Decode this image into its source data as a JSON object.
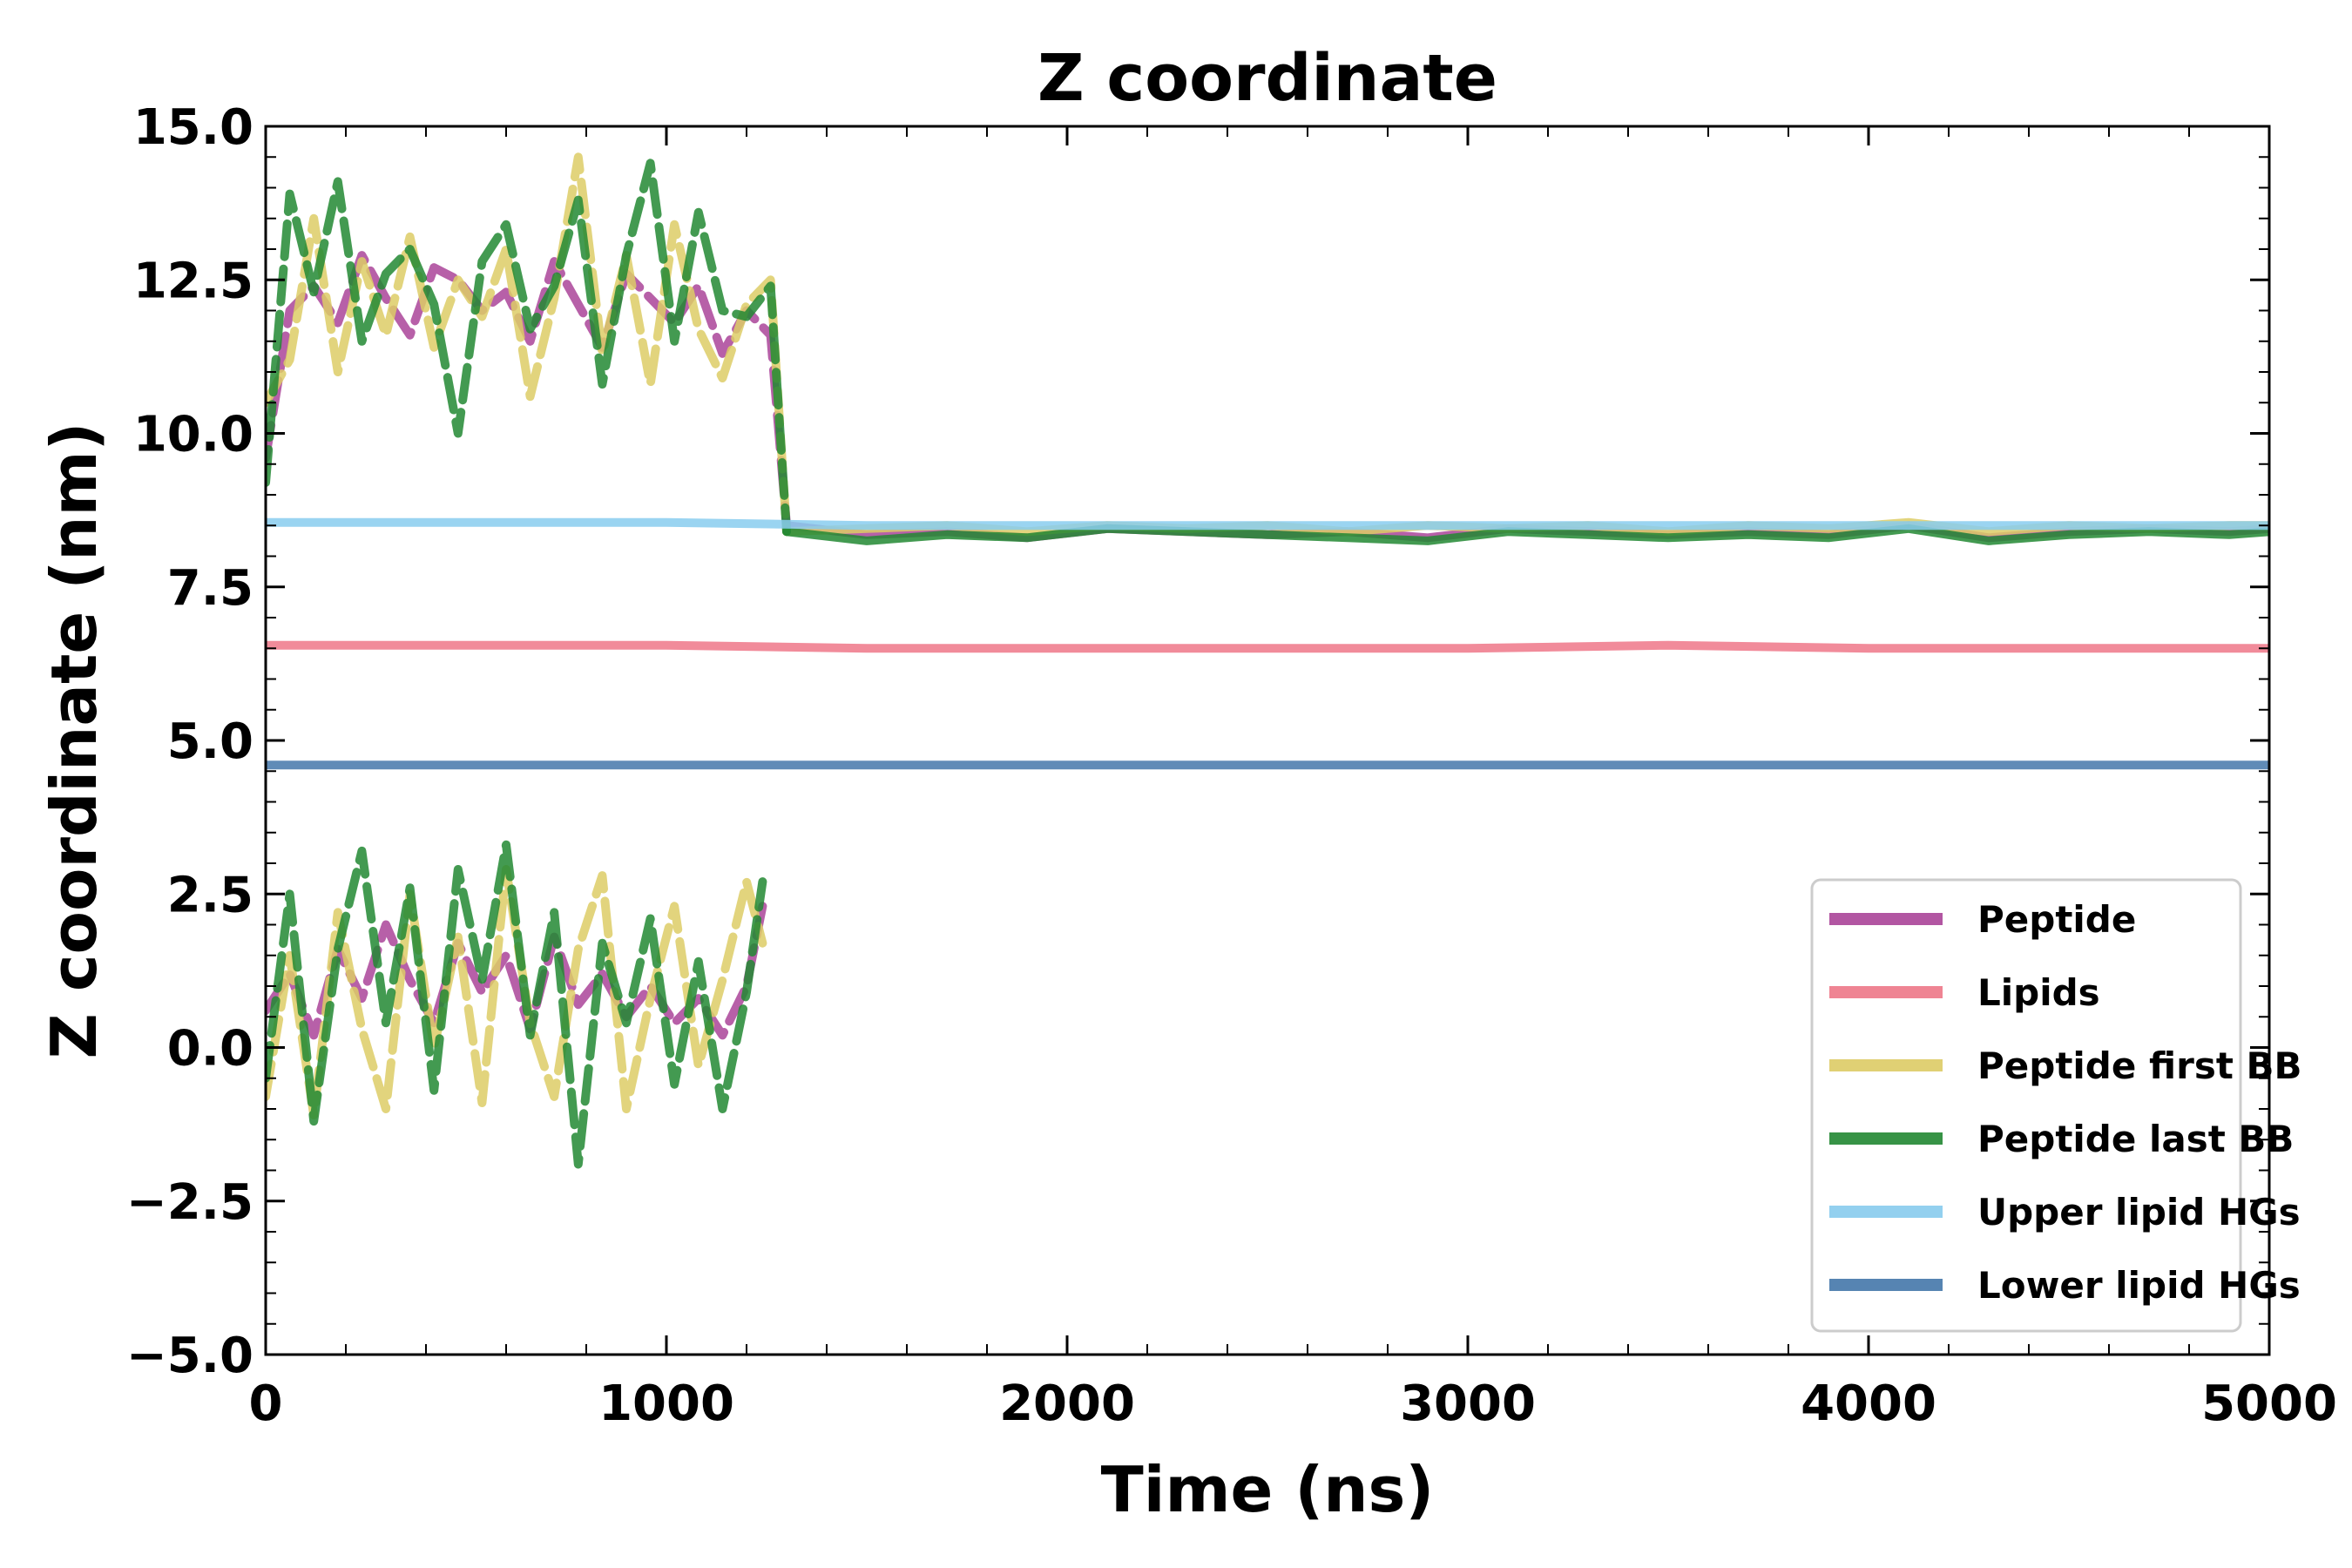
{
  "chart_data": {
    "type": "line",
    "title": "Z coordinate",
    "xlabel": "Time (ns)",
    "ylabel": "Z coordinate (nm)",
    "xlim": [
      0,
      5000
    ],
    "ylim": [
      -5.0,
      15.0
    ],
    "x_ticks": [
      "0",
      "1000",
      "2000",
      "3000",
      "4000",
      "5000"
    ],
    "y_ticks": [
      "−5.0",
      "−2.5",
      "0.0",
      "2.5",
      "5.0",
      "7.5",
      "10.0",
      "12.5",
      "15.0"
    ],
    "grid": false,
    "legend_position": "lower-right",
    "series": [
      {
        "name": "Peptide",
        "color": "#aa4499",
        "segments": [
          {
            "x": [
              0,
              60,
              120,
              180,
              240,
              300,
              360,
              420,
              480,
              540,
              600,
              660,
              720,
              780,
              840,
              900,
              960,
              1020,
              1080,
              1140,
              1200,
              1260,
              1300
            ],
            "y": [
              9.6,
              12.0,
              12.4,
              11.8,
              12.9,
              12.2,
              11.6,
              12.7,
              12.5,
              12.0,
              12.3,
              11.5,
              12.8,
              12.1,
              11.4,
              12.6,
              12.2,
              11.8,
              12.4,
              11.3,
              12.0,
              11.6,
              8.5
            ]
          },
          {
            "x": [
              0,
              60,
              120,
              180,
              240,
              300,
              360,
              420,
              480,
              540,
              600,
              660,
              720,
              780,
              840,
              900,
              960,
              1020,
              1080,
              1140,
              1200,
              1240
            ],
            "y": [
              0.6,
              1.2,
              0.2,
              1.6,
              0.8,
              2.0,
              1.1,
              0.4,
              1.7,
              0.9,
              1.5,
              0.3,
              1.8,
              0.7,
              1.2,
              0.5,
              1.0,
              0.4,
              0.8,
              0.2,
              1.0,
              2.3
            ]
          },
          {
            "x": [
              1300,
              1500,
              1700,
              1900,
              2100,
              2300,
              2500,
              2700,
              2900,
              3100,
              3300,
              3500,
              3700,
              3900,
              4100,
              4300,
              4500,
              4700,
              4900,
              5000
            ],
            "y": [
              8.5,
              8.35,
              8.4,
              8.3,
              8.45,
              8.4,
              8.35,
              8.4,
              8.3,
              8.45,
              8.4,
              8.35,
              8.4,
              8.35,
              8.5,
              8.3,
              8.4,
              8.45,
              8.4,
              8.45
            ]
          }
        ]
      },
      {
        "name": "Lipids",
        "color": "#ee7788",
        "segments": [
          {
            "x": [
              0,
              500,
              1000,
              1500,
              2000,
              2500,
              3000,
              3500,
              4000,
              4500,
              5000
            ],
            "y": [
              6.55,
              6.55,
              6.55,
              6.5,
              6.5,
              6.5,
              6.5,
              6.55,
              6.5,
              6.5,
              6.5
            ]
          }
        ]
      },
      {
        "name": "Peptide first BB",
        "color": "#ddcc66",
        "segments": [
          {
            "x": [
              0,
              60,
              120,
              180,
              240,
              300,
              360,
              420,
              480,
              540,
              600,
              660,
              720,
              780,
              840,
              900,
              960,
              1020,
              1080,
              1140,
              1200,
              1260,
              1300
            ],
            "y": [
              10.5,
              11.2,
              13.5,
              11.0,
              12.8,
              11.6,
              13.2,
              11.4,
              12.5,
              11.9,
              13.0,
              10.6,
              12.2,
              14.5,
              11.3,
              12.9,
              10.8,
              13.4,
              11.7,
              10.9,
              12.1,
              12.5,
              8.4
            ]
          },
          {
            "x": [
              0,
              60,
              120,
              180,
              240,
              300,
              360,
              420,
              480,
              540,
              600,
              660,
              720,
              780,
              840,
              900,
              960,
              1020,
              1080,
              1140,
              1200,
              1240
            ],
            "y": [
              -0.8,
              1.5,
              -1.1,
              2.2,
              0.3,
              -1.0,
              2.5,
              0.0,
              1.8,
              -0.9,
              2.9,
              0.4,
              -0.8,
              1.6,
              2.8,
              -1.0,
              0.8,
              2.3,
              -0.3,
              1.1,
              2.7,
              1.7
            ]
          },
          {
            "x": [
              1300,
              1500,
              1700,
              1900,
              2100,
              2300,
              2500,
              2700,
              2900,
              3100,
              3300,
              3500,
              3700,
              3900,
              4100,
              4300,
              4500,
              4700,
              4900,
              5000
            ],
            "y": [
              8.4,
              8.45,
              8.5,
              8.4,
              8.5,
              8.45,
              8.5,
              8.4,
              8.5,
              8.45,
              8.5,
              8.4,
              8.5,
              8.45,
              8.55,
              8.4,
              8.5,
              8.45,
              8.5,
              8.5
            ]
          }
        ]
      },
      {
        "name": "Peptide last BB",
        "color": "#228833",
        "segments": [
          {
            "x": [
              0,
              60,
              120,
              180,
              240,
              300,
              360,
              420,
              480,
              540,
              600,
              660,
              720,
              780,
              840,
              900,
              960,
              1020,
              1080,
              1140,
              1200,
              1260,
              1300
            ],
            "y": [
              9.2,
              13.9,
              12.3,
              14.1,
              11.5,
              12.6,
              13.0,
              12.1,
              10.0,
              12.8,
              13.4,
              11.7,
              12.4,
              13.8,
              10.8,
              12.9,
              14.4,
              11.5,
              13.6,
              12.0,
              11.9,
              12.4,
              8.4
            ]
          },
          {
            "x": [
              0,
              60,
              120,
              180,
              240,
              300,
              360,
              420,
              480,
              540,
              600,
              660,
              720,
              780,
              840,
              900,
              960,
              1020,
              1080,
              1140,
              1200,
              1240
            ],
            "y": [
              -0.5,
              2.5,
              -1.2,
              1.6,
              3.2,
              0.4,
              2.6,
              -0.7,
              2.9,
              1.1,
              3.3,
              0.2,
              2.2,
              -1.9,
              1.7,
              0.4,
              2.1,
              -0.6,
              1.4,
              -1.0,
              0.9,
              2.7
            ]
          },
          {
            "x": [
              1300,
              1500,
              1700,
              1900,
              2100,
              2300,
              2500,
              2700,
              2900,
              3100,
              3300,
              3500,
              3700,
              3900,
              4100,
              4300,
              4500,
              4700,
              4900,
              5000
            ],
            "y": [
              8.4,
              8.25,
              8.35,
              8.3,
              8.45,
              8.4,
              8.35,
              8.3,
              8.25,
              8.4,
              8.35,
              8.3,
              8.35,
              8.3,
              8.45,
              8.25,
              8.35,
              8.4,
              8.35,
              8.4
            ]
          }
        ]
      },
      {
        "name": "Upper lipid HGs",
        "color": "#88ccee",
        "segments": [
          {
            "x": [
              0,
              500,
              1000,
              1500,
              2000,
              2500,
              3000,
              3500,
              4000,
              4500,
              5000
            ],
            "y": [
              8.55,
              8.55,
              8.55,
              8.5,
              8.5,
              8.5,
              8.5,
              8.5,
              8.5,
              8.5,
              8.5
            ]
          }
        ]
      },
      {
        "name": "Lower lipid HGs",
        "color": "#4477aa",
        "segments": [
          {
            "x": [
              0,
              500,
              1000,
              1500,
              2000,
              2500,
              3000,
              3500,
              4000,
              4500,
              5000
            ],
            "y": [
              4.6,
              4.6,
              4.6,
              4.6,
              4.6,
              4.6,
              4.6,
              4.6,
              4.6,
              4.6,
              4.6
            ]
          }
        ]
      }
    ]
  }
}
